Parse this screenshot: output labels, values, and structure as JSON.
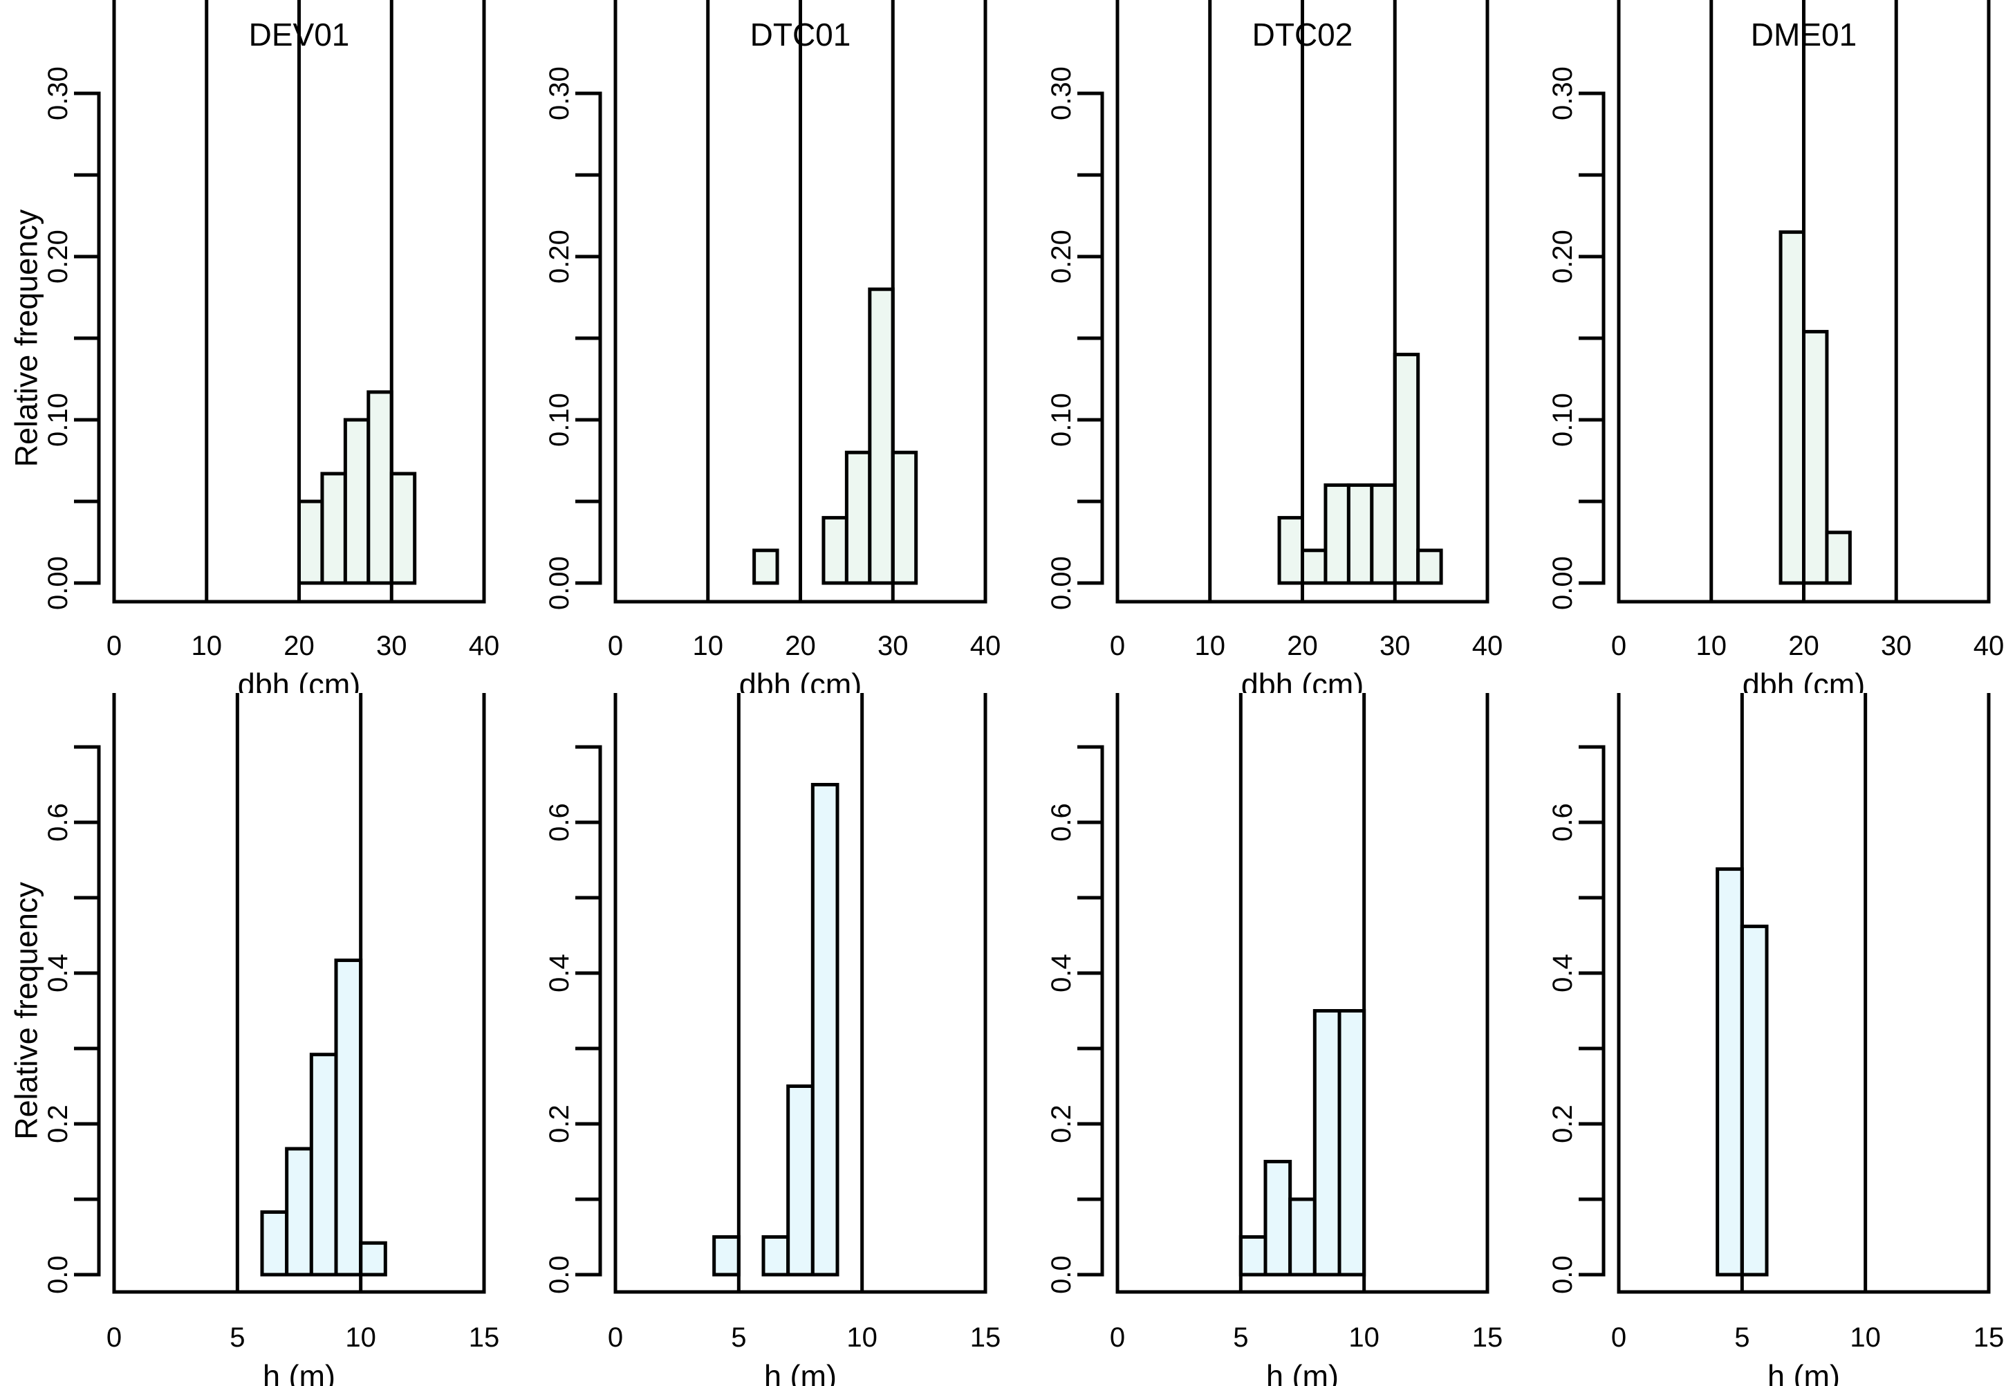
{
  "figure": {
    "background": "#ffffff",
    "axis_color": "#000000",
    "text_color": "#000000",
    "rows": 2,
    "cols": 4
  },
  "chart_data": [
    {
      "id": "DEV01-dbh",
      "type": "histogram",
      "row": 0,
      "col": 0,
      "title": "DEV01",
      "xlabel": "dbh (cm)",
      "ylabel": "Relative frequency",
      "xlim": [
        0,
        40
      ],
      "xticks": [
        0,
        10,
        20,
        30,
        40
      ],
      "ylim": [
        0,
        0.3
      ],
      "yticks": [
        0,
        0.05,
        0.1,
        0.15,
        0.2,
        0.25,
        0.3
      ],
      "ytick_labels": [
        "0.00",
        "",
        "0.10",
        "",
        "0.20",
        "",
        "0.30"
      ],
      "bin_width": 2.5,
      "bins": [
        [
          20,
          22.5,
          0.05
        ],
        [
          22.5,
          25,
          0.067
        ],
        [
          25,
          27.5,
          0.1
        ],
        [
          27.5,
          30,
          0.117
        ],
        [
          30,
          32.5,
          0.067
        ]
      ],
      "bar_fill": "#edf7f1",
      "bar_stroke": "#000000",
      "grid": false,
      "legend": null
    },
    {
      "id": "DTC01-dbh",
      "type": "histogram",
      "row": 0,
      "col": 1,
      "title": "DTC01",
      "xlabel": "dbh (cm)",
      "ylabel": null,
      "xlim": [
        0,
        40
      ],
      "xticks": [
        0,
        10,
        20,
        30,
        40
      ],
      "ylim": [
        0,
        0.3
      ],
      "yticks": [
        0,
        0.05,
        0.1,
        0.15,
        0.2,
        0.25,
        0.3
      ],
      "ytick_labels": [
        "0.00",
        "",
        "0.10",
        "",
        "0.20",
        "",
        "0.30"
      ],
      "bin_width": 2.5,
      "bins": [
        [
          15,
          17.5,
          0.02
        ],
        [
          22.5,
          25,
          0.04
        ],
        [
          25,
          27.5,
          0.08
        ],
        [
          27.5,
          30,
          0.18
        ],
        [
          30,
          32.5,
          0.08
        ]
      ],
      "bar_fill": "#edf7f1",
      "bar_stroke": "#000000",
      "grid": false,
      "legend": null
    },
    {
      "id": "DTC02-dbh",
      "type": "histogram",
      "row": 0,
      "col": 2,
      "title": "DTC02",
      "xlabel": "dbh (cm)",
      "ylabel": null,
      "xlim": [
        0,
        40
      ],
      "xticks": [
        0,
        10,
        20,
        30,
        40
      ],
      "ylim": [
        0,
        0.3
      ],
      "yticks": [
        0,
        0.05,
        0.1,
        0.15,
        0.2,
        0.25,
        0.3
      ],
      "ytick_labels": [
        "0.00",
        "",
        "0.10",
        "",
        "0.20",
        "",
        "0.30"
      ],
      "bin_width": 2.5,
      "bins": [
        [
          17.5,
          20,
          0.04
        ],
        [
          20,
          22.5,
          0.02
        ],
        [
          22.5,
          25,
          0.06
        ],
        [
          25,
          27.5,
          0.06
        ],
        [
          27.5,
          30,
          0.06
        ],
        [
          30,
          32.5,
          0.14
        ],
        [
          32.5,
          35,
          0.02
        ]
      ],
      "bar_fill": "#edf7f1",
      "bar_stroke": "#000000",
      "grid": false,
      "legend": null
    },
    {
      "id": "DME01-dbh",
      "type": "histogram",
      "row": 0,
      "col": 3,
      "title": "DME01",
      "xlabel": "dbh (cm)",
      "ylabel": null,
      "xlim": [
        0,
        40
      ],
      "xticks": [
        0,
        10,
        20,
        30,
        40
      ],
      "ylim": [
        0,
        0.3
      ],
      "yticks": [
        0,
        0.05,
        0.1,
        0.15,
        0.2,
        0.25,
        0.3
      ],
      "ytick_labels": [
        "0.00",
        "",
        "0.10",
        "",
        "0.20",
        "",
        "0.30"
      ],
      "bin_width": 2.5,
      "bins": [
        [
          17.5,
          20,
          0.215
        ],
        [
          20,
          22.5,
          0.154
        ],
        [
          22.5,
          25,
          0.031
        ]
      ],
      "bar_fill": "#edf7f1",
      "bar_stroke": "#000000",
      "grid": false,
      "legend": null
    },
    {
      "id": "DEV01-h",
      "type": "histogram",
      "row": 1,
      "col": 0,
      "title": null,
      "xlabel": "h (m)",
      "ylabel": "Relative frequency",
      "xlim": [
        0,
        15
      ],
      "xticks": [
        0,
        5,
        10,
        15
      ],
      "ylim": [
        0,
        0.7
      ],
      "yticks": [
        0,
        0.1,
        0.2,
        0.3,
        0.4,
        0.5,
        0.6,
        0.7
      ],
      "ytick_labels": [
        "0.0",
        "",
        "0.2",
        "",
        "0.4",
        "",
        "0.6",
        ""
      ],
      "bin_width": 1,
      "bins": [
        [
          6,
          7,
          0.083
        ],
        [
          7,
          8,
          0.167
        ],
        [
          8,
          9,
          0.292
        ],
        [
          9,
          10,
          0.417
        ],
        [
          10,
          11,
          0.042
        ]
      ],
      "bar_fill": "#e7f8fd",
      "bar_stroke": "#000000",
      "grid": false,
      "legend": null
    },
    {
      "id": "DTC01-h",
      "type": "histogram",
      "row": 1,
      "col": 1,
      "title": null,
      "xlabel": "h (m)",
      "ylabel": null,
      "xlim": [
        0,
        15
      ],
      "xticks": [
        0,
        5,
        10,
        15
      ],
      "ylim": [
        0,
        0.7
      ],
      "yticks": [
        0,
        0.1,
        0.2,
        0.3,
        0.4,
        0.5,
        0.6,
        0.7
      ],
      "ytick_labels": [
        "0.0",
        "",
        "0.2",
        "",
        "0.4",
        "",
        "0.6",
        ""
      ],
      "bin_width": 1,
      "bins": [
        [
          4,
          5,
          0.05
        ],
        [
          6,
          7,
          0.05
        ],
        [
          7,
          8,
          0.25
        ],
        [
          8,
          9,
          0.65
        ]
      ],
      "bar_fill": "#e7f8fd",
      "bar_stroke": "#000000",
      "grid": false,
      "legend": null
    },
    {
      "id": "DTC02-h",
      "type": "histogram",
      "row": 1,
      "col": 2,
      "title": null,
      "xlabel": "h (m)",
      "ylabel": null,
      "xlim": [
        0,
        15
      ],
      "xticks": [
        0,
        5,
        10,
        15
      ],
      "ylim": [
        0,
        0.7
      ],
      "yticks": [
        0,
        0.1,
        0.2,
        0.3,
        0.4,
        0.5,
        0.6,
        0.7
      ],
      "ytick_labels": [
        "0.0",
        "",
        "0.2",
        "",
        "0.4",
        "",
        "0.6",
        ""
      ],
      "bin_width": 1,
      "bins": [
        [
          5,
          6,
          0.05
        ],
        [
          6,
          7,
          0.15
        ],
        [
          7,
          8,
          0.1
        ],
        [
          8,
          9,
          0.35
        ],
        [
          9,
          10,
          0.35
        ]
      ],
      "bar_fill": "#e7f8fd",
      "bar_stroke": "#000000",
      "grid": false,
      "legend": null
    },
    {
      "id": "DME01-h",
      "type": "histogram",
      "row": 1,
      "col": 3,
      "title": null,
      "xlabel": "h (m)",
      "ylabel": null,
      "xlim": [
        0,
        15
      ],
      "xticks": [
        0,
        5,
        10,
        15
      ],
      "ylim": [
        0,
        0.7
      ],
      "yticks": [
        0,
        0.1,
        0.2,
        0.3,
        0.4,
        0.5,
        0.6,
        0.7
      ],
      "ytick_labels": [
        "0.0",
        "",
        "0.2",
        "",
        "0.4",
        "",
        "0.6",
        ""
      ],
      "bin_width": 1,
      "bins": [
        [
          4,
          5,
          0.538
        ],
        [
          5,
          6,
          0.462
        ]
      ],
      "bar_fill": "#e7f8fd",
      "bar_stroke": "#000000",
      "grid": false,
      "legend": null
    }
  ]
}
